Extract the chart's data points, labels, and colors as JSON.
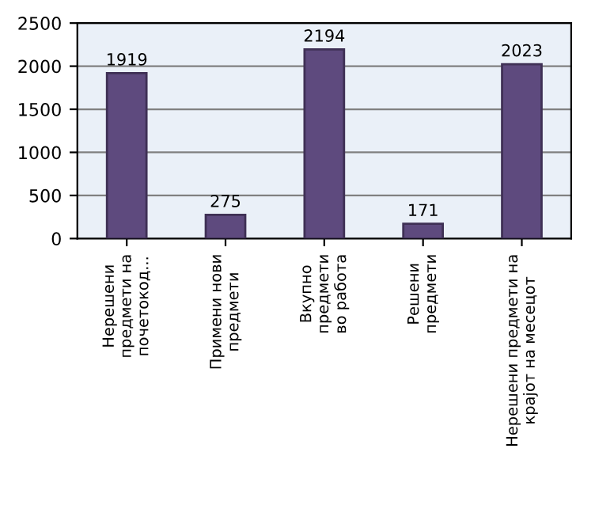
{
  "chart_data": {
    "type": "bar",
    "categories": [
      "Нерешени\nпредмети на\nпочетокод...",
      "Примени нови\nпредмети",
      "Вкупно\nпредмети\nво работа",
      "Решени\nпредмети",
      "Нерешени предмети на\nкрајот на месецот"
    ],
    "values": [
      1919,
      275,
      2194,
      171,
      2023
    ],
    "color": "#5e4a7e",
    "ylim": [
      0,
      2500
    ],
    "yticks": [
      0,
      500,
      1000,
      1500,
      2000,
      2500
    ],
    "grid": "y",
    "data_labels": true
  }
}
